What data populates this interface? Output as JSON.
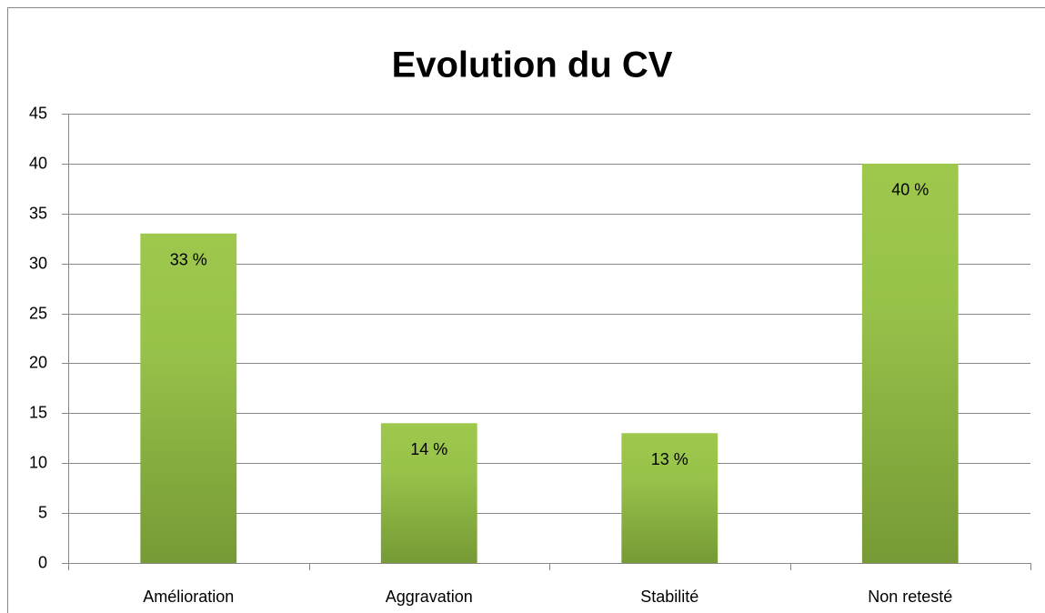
{
  "chart_data": {
    "type": "bar",
    "title": "Evolution du CV",
    "categories": [
      "Amélioration",
      "Aggravation",
      "Stabilité",
      "Non retesté"
    ],
    "values": [
      33,
      14,
      13,
      40
    ],
    "value_labels": [
      "33 %",
      "14 %",
      "13 %",
      "40 %"
    ],
    "color": "#8db543",
    "ylim": [
      0,
      45
    ],
    "yticks": [
      0,
      5,
      10,
      15,
      20,
      25,
      30,
      35,
      40,
      45
    ],
    "grid": true
  }
}
